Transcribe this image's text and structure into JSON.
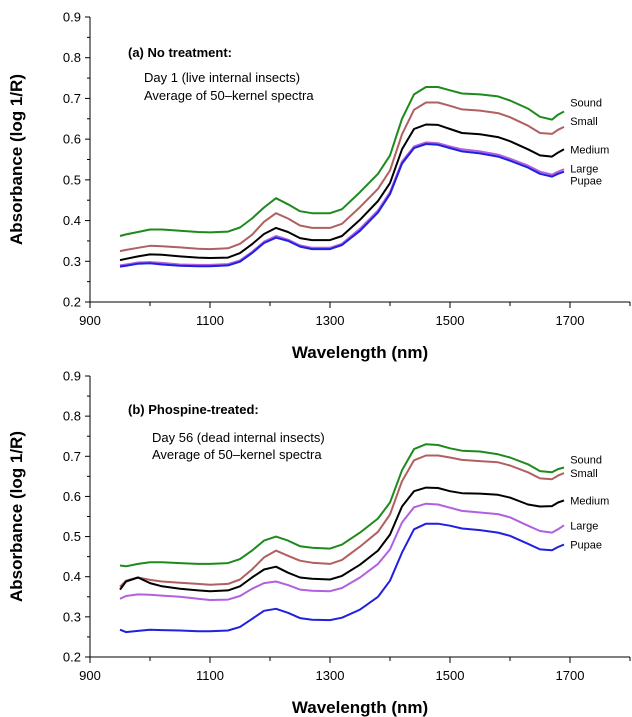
{
  "chart_data": [
    {
      "type": "line",
      "title": "(a) No treatment:",
      "notes": [
        "Day 1 (live internal insects)",
        "Average of 50–kernel spectra"
      ],
      "xlabel": "Wavelength (nm)",
      "ylabel": "Absorbance (log 1/R)",
      "xlim": [
        900,
        1800
      ],
      "ylim": [
        0.2,
        0.9
      ],
      "xticks": [
        900,
        1100,
        1300,
        1500,
        1700
      ],
      "yticks": [
        0.2,
        0.3,
        0.4,
        0.5,
        0.6,
        0.7,
        0.8,
        0.9
      ],
      "x": [
        950,
        960,
        980,
        1000,
        1020,
        1050,
        1080,
        1100,
        1130,
        1150,
        1170,
        1190,
        1210,
        1230,
        1250,
        1270,
        1300,
        1320,
        1350,
        1380,
        1400,
        1420,
        1440,
        1460,
        1480,
        1500,
        1520,
        1550,
        1580,
        1600,
        1630,
        1650,
        1670,
        1680,
        1690
      ],
      "series": [
        {
          "name": "Sound",
          "color": "#1e8a1e",
          "values": [
            0.362,
            0.366,
            0.372,
            0.378,
            0.378,
            0.375,
            0.372,
            0.371,
            0.373,
            0.383,
            0.405,
            0.432,
            0.455,
            0.44,
            0.423,
            0.418,
            0.418,
            0.428,
            0.47,
            0.515,
            0.56,
            0.65,
            0.71,
            0.728,
            0.728,
            0.72,
            0.712,
            0.71,
            0.705,
            0.695,
            0.675,
            0.655,
            0.648,
            0.66,
            0.668
          ]
        },
        {
          "name": "Small",
          "color": "#b06060",
          "values": [
            0.325,
            0.328,
            0.333,
            0.338,
            0.337,
            0.334,
            0.331,
            0.33,
            0.332,
            0.343,
            0.365,
            0.397,
            0.418,
            0.405,
            0.388,
            0.382,
            0.382,
            0.392,
            0.433,
            0.478,
            0.523,
            0.612,
            0.672,
            0.69,
            0.69,
            0.682,
            0.673,
            0.67,
            0.664,
            0.654,
            0.633,
            0.615,
            0.613,
            0.623,
            0.63
          ]
        },
        {
          "name": "Medium",
          "color": "#000000",
          "values": [
            0.303,
            0.306,
            0.312,
            0.317,
            0.316,
            0.312,
            0.309,
            0.308,
            0.309,
            0.32,
            0.342,
            0.367,
            0.382,
            0.372,
            0.357,
            0.352,
            0.352,
            0.362,
            0.402,
            0.448,
            0.492,
            0.575,
            0.625,
            0.636,
            0.635,
            0.625,
            0.615,
            0.612,
            0.605,
            0.595,
            0.575,
            0.56,
            0.557,
            0.567,
            0.575
          ]
        },
        {
          "name": "Large",
          "color": "#b060e0",
          "values": [
            0.29,
            0.292,
            0.297,
            0.298,
            0.296,
            0.292,
            0.291,
            0.291,
            0.293,
            0.302,
            0.323,
            0.348,
            0.362,
            0.353,
            0.339,
            0.333,
            0.333,
            0.343,
            0.38,
            0.425,
            0.47,
            0.545,
            0.582,
            0.592,
            0.59,
            0.582,
            0.575,
            0.57,
            0.562,
            0.552,
            0.535,
            0.52,
            0.513,
            0.52,
            0.526
          ]
        },
        {
          "name": "Pupae",
          "color": "#2020e0",
          "values": [
            0.287,
            0.289,
            0.294,
            0.295,
            0.292,
            0.289,
            0.288,
            0.288,
            0.29,
            0.299,
            0.32,
            0.345,
            0.358,
            0.35,
            0.336,
            0.33,
            0.33,
            0.34,
            0.375,
            0.42,
            0.465,
            0.54,
            0.578,
            0.588,
            0.586,
            0.578,
            0.57,
            0.565,
            0.557,
            0.547,
            0.53,
            0.515,
            0.508,
            0.515,
            0.52
          ]
        }
      ]
    },
    {
      "type": "line",
      "title": "(b) Phospine-treated:",
      "notes": [
        "Day 56 (dead internal insects)",
        "Average of 50–kernel spectra"
      ],
      "xlabel": "Wavelength (nm)",
      "ylabel": "Absorbance (log 1/R)",
      "xlim": [
        900,
        1800
      ],
      "ylim": [
        0.2,
        0.9
      ],
      "xticks": [
        900,
        1100,
        1300,
        1500,
        1700
      ],
      "yticks": [
        0.2,
        0.3,
        0.4,
        0.5,
        0.6,
        0.7,
        0.8,
        0.9
      ],
      "x": [
        950,
        960,
        980,
        1000,
        1020,
        1050,
        1080,
        1100,
        1130,
        1150,
        1170,
        1190,
        1210,
        1230,
        1250,
        1270,
        1300,
        1320,
        1350,
        1380,
        1400,
        1420,
        1440,
        1460,
        1480,
        1500,
        1520,
        1550,
        1580,
        1600,
        1630,
        1650,
        1670,
        1680,
        1690
      ],
      "series": [
        {
          "name": "Sound",
          "color": "#1e8a1e",
          "values": [
            0.428,
            0.426,
            0.432,
            0.436,
            0.436,
            0.434,
            0.432,
            0.432,
            0.434,
            0.444,
            0.465,
            0.49,
            0.5,
            0.49,
            0.476,
            0.472,
            0.47,
            0.48,
            0.51,
            0.545,
            0.585,
            0.665,
            0.718,
            0.73,
            0.728,
            0.72,
            0.714,
            0.712,
            0.705,
            0.697,
            0.68,
            0.663,
            0.66,
            0.668,
            0.672
          ]
        },
        {
          "name": "Small",
          "color": "#b06060",
          "values": [
            0.375,
            0.39,
            0.398,
            0.392,
            0.388,
            0.385,
            0.382,
            0.38,
            0.382,
            0.393,
            0.418,
            0.448,
            0.465,
            0.452,
            0.44,
            0.435,
            0.432,
            0.442,
            0.475,
            0.512,
            0.555,
            0.638,
            0.69,
            0.702,
            0.702,
            0.697,
            0.691,
            0.688,
            0.685,
            0.677,
            0.66,
            0.645,
            0.643,
            0.652,
            0.658
          ]
        },
        {
          "name": "Medium",
          "color": "#000000",
          "values": [
            0.368,
            0.388,
            0.398,
            0.384,
            0.376,
            0.37,
            0.366,
            0.364,
            0.366,
            0.376,
            0.398,
            0.418,
            0.425,
            0.41,
            0.398,
            0.395,
            0.393,
            0.402,
            0.43,
            0.465,
            0.505,
            0.575,
            0.613,
            0.622,
            0.621,
            0.613,
            0.608,
            0.607,
            0.604,
            0.597,
            0.58,
            0.575,
            0.576,
            0.585,
            0.59
          ]
        },
        {
          "name": "Large",
          "color": "#b060e0",
          "values": [
            0.345,
            0.352,
            0.356,
            0.355,
            0.353,
            0.35,
            0.345,
            0.342,
            0.343,
            0.352,
            0.37,
            0.384,
            0.388,
            0.379,
            0.368,
            0.365,
            0.364,
            0.372,
            0.398,
            0.432,
            0.468,
            0.535,
            0.573,
            0.582,
            0.58,
            0.572,
            0.564,
            0.56,
            0.556,
            0.548,
            0.527,
            0.514,
            0.51,
            0.518,
            0.528
          ]
        },
        {
          "name": "Pupae",
          "color": "#2020e0",
          "values": [
            0.268,
            0.262,
            0.265,
            0.268,
            0.267,
            0.266,
            0.264,
            0.264,
            0.266,
            0.275,
            0.295,
            0.315,
            0.32,
            0.31,
            0.297,
            0.293,
            0.292,
            0.298,
            0.318,
            0.35,
            0.39,
            0.46,
            0.518,
            0.532,
            0.532,
            0.527,
            0.52,
            0.516,
            0.51,
            0.502,
            0.482,
            0.468,
            0.466,
            0.474,
            0.48
          ]
        }
      ]
    }
  ]
}
